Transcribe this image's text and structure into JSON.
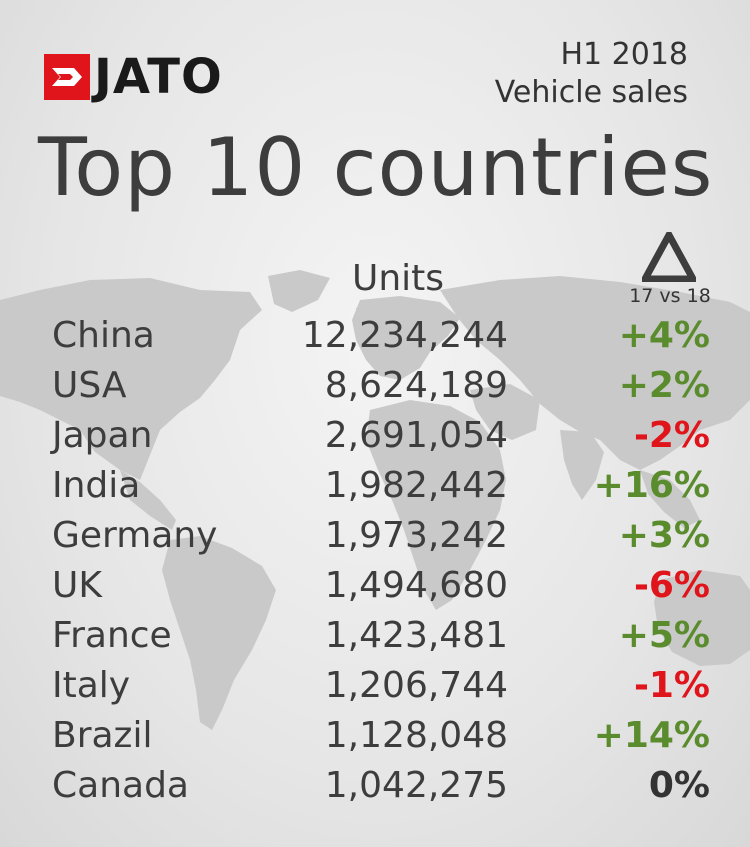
{
  "header": {
    "brand": "JATO",
    "period": "H1 2018",
    "subject": "Vehicle sales",
    "title": "Top 10 countries"
  },
  "columns": {
    "units": "Units",
    "delta_label": "17 vs 18",
    "delta_icon": "triangle-delta-icon"
  },
  "colors": {
    "brand_red": "#e0141b",
    "positive": "#5a8c2e",
    "negative": "#e0141b",
    "neutral": "#333333",
    "text": "#3d3d3d"
  },
  "chart_data": {
    "type": "table",
    "title": "Top 10 countries",
    "columns": [
      "",
      "Units",
      "17 vs 18"
    ],
    "rows": [
      {
        "country": "China",
        "units": "12,234,244",
        "change": "+4%"
      },
      {
        "country": "USA",
        "units": "8,624,189",
        "change": "+2%"
      },
      {
        "country": "Japan",
        "units": "2,691,054",
        "change": "-2%"
      },
      {
        "country": "India",
        "units": "1,982,442",
        "change": "+16%"
      },
      {
        "country": "Germany",
        "units": "1,973,242",
        "change": "+3%"
      },
      {
        "country": "UK",
        "units": "1,494,680",
        "change": "-6%"
      },
      {
        "country": "France",
        "units": "1,423,481",
        "change": "+5%"
      },
      {
        "country": "Italy",
        "units": "1,206,744",
        "change": "-1%"
      },
      {
        "country": "Brazil",
        "units": "1,128,048",
        "change": "+14%"
      },
      {
        "country": "Canada",
        "units": "1,042,275",
        "change": "0%"
      }
    ]
  }
}
